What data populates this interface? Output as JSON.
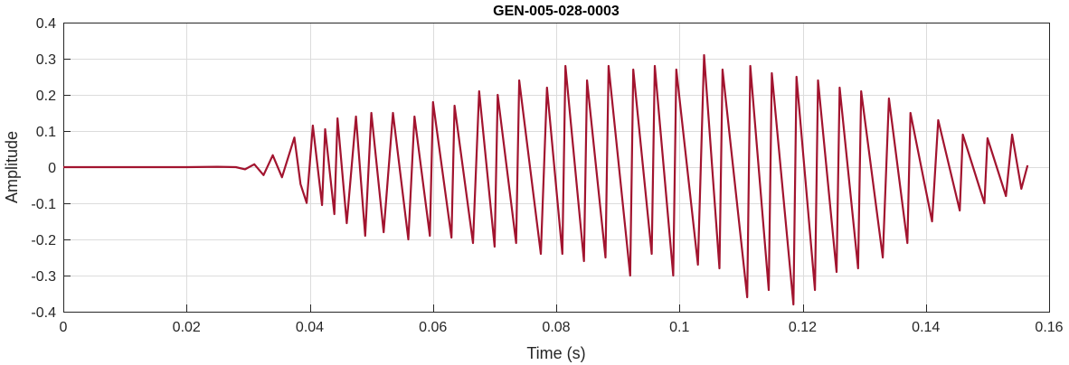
{
  "chart_data": {
    "type": "line",
    "title": "GEN-005-028-0003",
    "xlabel": "Time (s)",
    "ylabel": "Amplitude",
    "xlim": [
      0,
      0.16
    ],
    "ylim": [
      -0.4,
      0.4
    ],
    "x_ticks": [
      0,
      0.02,
      0.04,
      0.06,
      0.08,
      0.1,
      0.12,
      0.14,
      0.16
    ],
    "x_tick_labels": [
      "0",
      "0.02",
      "0.04",
      "0.06",
      "0.08",
      "0.1",
      "0.12",
      "0.14",
      "0.16"
    ],
    "y_ticks": [
      0.4,
      0.3,
      0.2,
      0.1,
      0,
      -0.1,
      -0.2,
      -0.3,
      -0.4
    ],
    "y_tick_labels": [
      "0.4",
      "0.3",
      "0.2",
      "0.1",
      "0",
      "-0.1",
      "-0.2",
      "-0.3",
      "-0.4"
    ],
    "grid": true,
    "line_color": "#A2142F",
    "series": [
      {
        "x": [
          0,
          0.02,
          0.025,
          0.028,
          0.0295,
          0.031,
          0.0325,
          0.034,
          0.0355,
          0.0375,
          0.0385,
          0.0395,
          0.0405,
          0.042,
          0.0425,
          0.044,
          0.0445,
          0.046,
          0.0475,
          0.049,
          0.05,
          0.052,
          0.0535,
          0.056,
          0.057,
          0.0595,
          0.06,
          0.063,
          0.0635,
          0.0665,
          0.0675,
          0.07,
          0.0705,
          0.0735,
          0.074,
          0.0775,
          0.0785,
          0.081,
          0.0815,
          0.0845,
          0.085,
          0.088,
          0.0885,
          0.092,
          0.0925,
          0.0955,
          0.096,
          0.099,
          0.0995,
          0.103,
          0.104,
          0.1065,
          0.107,
          0.111,
          0.1115,
          0.1145,
          0.115,
          0.1185,
          0.119,
          0.122,
          0.1225,
          0.1255,
          0.126,
          0.129,
          0.1295,
          0.133,
          0.134,
          0.137,
          0.1375,
          0.141,
          0.142,
          0.1455,
          0.146,
          0.1495,
          0.15,
          0.153,
          0.154,
          0.1555,
          0.1565
        ],
        "y": [
          0,
          0,
          0.001,
          0,
          -0.006,
          0.008,
          -0.022,
          0.033,
          -0.028,
          0.082,
          -0.047,
          -0.099,
          0.115,
          -0.105,
          0.105,
          -0.13,
          0.135,
          -0.155,
          0.14,
          -0.19,
          0.15,
          -0.18,
          0.15,
          -0.2,
          0.14,
          -0.19,
          0.18,
          -0.195,
          0.17,
          -0.21,
          0.21,
          -0.22,
          0.2,
          -0.21,
          0.24,
          -0.24,
          0.22,
          -0.24,
          0.28,
          -0.26,
          0.24,
          -0.25,
          0.28,
          -0.3,
          0.27,
          -0.24,
          0.28,
          -0.3,
          0.27,
          -0.27,
          0.31,
          -0.28,
          0.27,
          -0.36,
          0.28,
          -0.34,
          0.26,
          -0.38,
          0.25,
          -0.34,
          0.24,
          -0.29,
          0.22,
          -0.28,
          0.21,
          -0.25,
          0.19,
          -0.21,
          0.15,
          -0.15,
          0.13,
          -0.12,
          0.09,
          -0.1,
          0.08,
          -0.08,
          0.09,
          -0.06,
          0.005
        ]
      }
    ]
  }
}
